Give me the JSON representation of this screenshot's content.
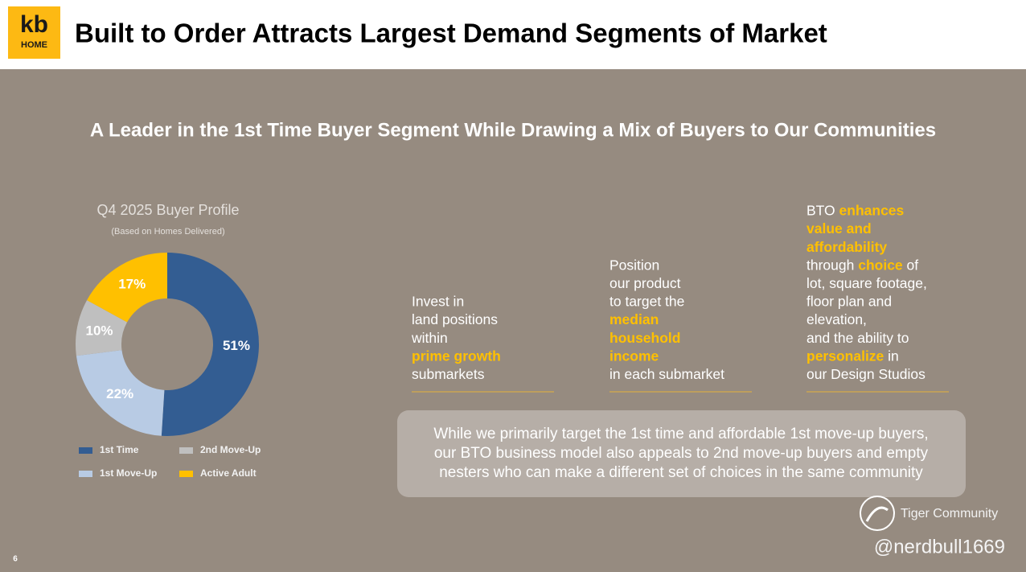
{
  "header": {
    "logo_top": "kb",
    "logo_bottom": "HOME",
    "title": "Built to Order Attracts Largest Demand Segments of Market"
  },
  "subtitle": "A Leader in the 1st Time Buyer Segment While Drawing a Mix of Buyers to Our Communities",
  "chart_data": {
    "type": "donut",
    "title": "Q4 2025 Buyer Profile",
    "subtitle": "(Based on Homes Delivered)",
    "categories": [
      "1st Time",
      "1st Move-Up",
      "2nd Move-Up",
      "Active Adult"
    ],
    "values": [
      51,
      22,
      10,
      17
    ],
    "value_labels": [
      "51%",
      "22%",
      "10%",
      "17%"
    ],
    "colors": [
      "#335d92",
      "#b8cbe4",
      "#bfbfbf",
      "#ffc000"
    ]
  },
  "columns": [
    {
      "lines": [
        [
          {
            "text": "Invest in"
          }
        ],
        [
          {
            "text": "land positions"
          }
        ],
        [
          {
            "text": "within"
          }
        ],
        [
          {
            "text": "prime growth",
            "accent": true
          }
        ],
        [
          {
            "text": "submarkets"
          }
        ]
      ]
    },
    {
      "lines": [
        [
          {
            "text": "Position"
          }
        ],
        [
          {
            "text": "our product"
          }
        ],
        [
          {
            "text": "to target the"
          }
        ],
        [
          {
            "text": "median",
            "accent": true
          }
        ],
        [
          {
            "text": "household",
            "accent": true
          }
        ],
        [
          {
            "text": "income",
            "accent": true
          }
        ],
        [
          {
            "text": "in each submarket"
          }
        ]
      ]
    },
    {
      "lines": [
        [
          {
            "text": "BTO "
          },
          {
            "text": "enhances",
            "accent": true
          }
        ],
        [
          {
            "text": "value and",
            "accent": true
          }
        ],
        [
          {
            "text": "affordability",
            "accent": true
          }
        ],
        [
          {
            "text": "through "
          },
          {
            "text": "choice",
            "accent": true
          },
          {
            "text": " of"
          }
        ],
        [
          {
            "text": "lot, square footage,"
          }
        ],
        [
          {
            "text": "floor plan and"
          }
        ],
        [
          {
            "text": "elevation,"
          }
        ],
        [
          {
            "text": "and the ability to"
          }
        ],
        [
          {
            "text": "personalize",
            "accent": true
          },
          {
            "text": " in"
          }
        ],
        [
          {
            "text": "our Design Studios"
          }
        ]
      ]
    }
  ],
  "callout": {
    "lines": [
      "While we primarily target the 1st time and affordable 1st move-up buyers,",
      "our BTO business model also appeals to 2nd move-up buyers and empty",
      "nesters who can make a different set of choices in the same community"
    ]
  },
  "page_number": "6",
  "watermark": {
    "brand": "Tiger Community",
    "handle": "@nerdbull1669"
  }
}
